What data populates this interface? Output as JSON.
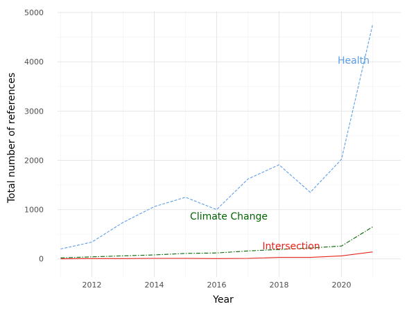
{
  "chart_data": {
    "type": "line",
    "title": "",
    "xlabel": "Year",
    "ylabel": "Total number of references",
    "x": [
      2011,
      2012,
      2013,
      2014,
      2015,
      2016,
      2017,
      2018,
      2019,
      2020,
      2021
    ],
    "xlim": [
      2010.9,
      2021.9
    ],
    "ylim": [
      -370,
      5030
    ],
    "x_ticks": [
      2012,
      2014,
      2016,
      2018,
      2020
    ],
    "y_ticks": [
      0,
      1000,
      2000,
      3000,
      4000,
      5000
    ],
    "grid": true,
    "legend": "none",
    "series": [
      {
        "name": "Health",
        "color": "#5b9ee8",
        "line_style": "dashed",
        "values": [
          200,
          340,
          740,
          1060,
          1250,
          1000,
          1620,
          1910,
          1350,
          2020,
          4760
        ]
      },
      {
        "name": "Climate Change",
        "color": "#006400",
        "line_style": "dashdot",
        "values": [
          20,
          40,
          60,
          80,
          110,
          120,
          160,
          190,
          220,
          260,
          650
        ]
      },
      {
        "name": "Intersection",
        "color": "#e8231d",
        "line_style": "solid",
        "values": [
          0,
          5,
          5,
          10,
          10,
          5,
          10,
          30,
          30,
          60,
          140
        ]
      }
    ]
  }
}
